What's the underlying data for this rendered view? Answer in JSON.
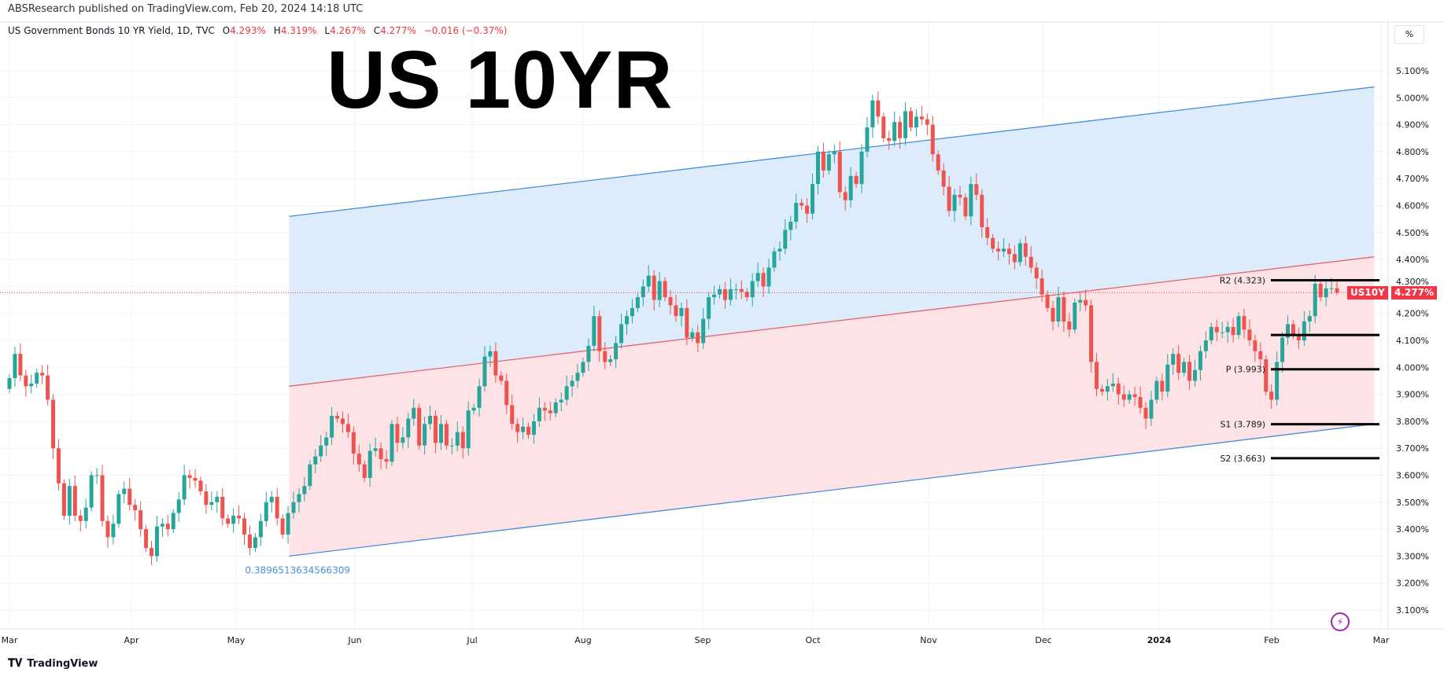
{
  "header": {
    "published": "ABSResearch published on TradingView.com, Feb 20, 2024 14:18 UTC",
    "symbol_desc": "US Government Bonds 10 YR Yield, 1D, TVC",
    "o_label": "O",
    "o": "4.293%",
    "h_label": "H",
    "h": "4.319%",
    "l_label": "L",
    "l": "4.267%",
    "c_label": "C",
    "c": "4.277%",
    "change": "−0.016 (−0.37%)",
    "unit_button": "%"
  },
  "title": "US 10YR",
  "footer": {
    "logo_text": "TradingView"
  },
  "colors": {
    "up": "#26a69a",
    "down": "#ef5350",
    "channel_upper_fill": "#dcecfa",
    "channel_lower_fill": "#fde3e5",
    "channel_line": "#4a8fd6",
    "mid_line": "#e5646f",
    "pivot_line": "#000000",
    "label_blue": "#4a90d9"
  },
  "chart_data": {
    "type": "candlestick",
    "symbol": "US10Y",
    "last_price": "4.277%",
    "last_value": 4.277,
    "y_ticks": [
      "5.100%",
      "5.000%",
      "4.900%",
      "4.800%",
      "4.700%",
      "4.600%",
      "4.500%",
      "4.400%",
      "4.300%",
      "4.200%",
      "4.100%",
      "4.000%",
      "3.900%",
      "3.800%",
      "3.700%",
      "3.600%",
      "3.500%",
      "3.400%",
      "3.300%",
      "3.200%",
      "3.100%"
    ],
    "ylim": [
      3.1,
      5.1
    ],
    "x_ticks": [
      "Mar",
      "Apr",
      "May",
      "Jun",
      "Jul",
      "Aug",
      "Sep",
      "Oct",
      "Nov",
      "Dec",
      "2024",
      "Feb",
      "Mar"
    ],
    "date_range": [
      "2023-03-01",
      "2024-02-20"
    ],
    "first_open": 3.92,
    "last_candle": {
      "open": 4.293,
      "high": 4.319,
      "low": 4.267,
      "close": 4.277
    },
    "closes": [
      3.96,
      4.05,
      3.97,
      3.93,
      3.94,
      3.98,
      3.97,
      3.88,
      3.7,
      3.57,
      3.45,
      3.56,
      3.45,
      3.43,
      3.48,
      3.6,
      3.6,
      3.43,
      3.37,
      3.42,
      3.53,
      3.55,
      3.49,
      3.47,
      3.4,
      3.33,
      3.3,
      3.41,
      3.42,
      3.4,
      3.46,
      3.51,
      3.6,
      3.59,
      3.58,
      3.54,
      3.49,
      3.5,
      3.52,
      3.44,
      3.42,
      3.45,
      3.44,
      3.38,
      3.33,
      3.37,
      3.43,
      3.5,
      3.52,
      3.44,
      3.38,
      3.46,
      3.5,
      3.53,
      3.56,
      3.64,
      3.67,
      3.71,
      3.74,
      3.82,
      3.81,
      3.79,
      3.76,
      3.68,
      3.64,
      3.59,
      3.69,
      3.7,
      3.66,
      3.65,
      3.79,
      3.72,
      3.74,
      3.81,
      3.85,
      3.71,
      3.79,
      3.82,
      3.72,
      3.79,
      3.71,
      3.71,
      3.76,
      3.7,
      3.84,
      3.85,
      3.93,
      4.04,
      4.06,
      3.97,
      3.95,
      3.86,
      3.79,
      3.76,
      3.78,
      3.75,
      3.8,
      3.85,
      3.84,
      3.83,
      3.87,
      3.88,
      3.93,
      3.95,
      3.98,
      4.02,
      4.08,
      4.19,
      4.06,
      4.02,
      4.03,
      4.09,
      4.16,
      4.19,
      4.22,
      4.26,
      4.3,
      4.34,
      4.25,
      4.32,
      4.26,
      4.23,
      4.19,
      4.22,
      4.11,
      4.13,
      4.09,
      4.18,
      4.26,
      4.27,
      4.29,
      4.25,
      4.29,
      4.29,
      4.28,
      4.26,
      4.32,
      4.35,
      4.3,
      4.37,
      4.43,
      4.44,
      4.51,
      4.54,
      4.61,
      4.6,
      4.57,
      4.68,
      4.8,
      4.73,
      4.79,
      4.8,
      4.65,
      4.62,
      4.71,
      4.68,
      4.8,
      4.89,
      4.99,
      4.93,
      4.85,
      4.84,
      4.91,
      4.85,
      4.95,
      4.89,
      4.93,
      4.92,
      4.9,
      4.79,
      4.73,
      4.67,
      4.58,
      4.64,
      4.63,
      4.56,
      4.68,
      4.64,
      4.52,
      4.48,
      4.44,
      4.43,
      4.44,
      4.42,
      4.39,
      4.46,
      4.41,
      4.37,
      4.33,
      4.27,
      4.22,
      4.17,
      4.26,
      4.17,
      4.14,
      4.24,
      4.25,
      4.23,
      4.02,
      3.92,
      3.91,
      3.93,
      3.94,
      3.9,
      3.88,
      3.9,
      3.89,
      3.85,
      3.81,
      3.88,
      3.95,
      3.91,
      4.01,
      4.05,
      3.98,
      4.02,
      3.95,
      3.99,
      4.06,
      4.1,
      4.15,
      4.13,
      4.13,
      4.15,
      4.12,
      4.19,
      4.14,
      4.1,
      4.06,
      4.03,
      3.91,
      3.88,
      4.02,
      4.11,
      4.16,
      4.12,
      4.1,
      4.17,
      4.19,
      4.31,
      4.26,
      4.293,
      4.293,
      4.277
    ],
    "channel": {
      "start_date": "2023-05-15",
      "end_date": "2024-03-01",
      "upper": [
        4.56,
        5.04
      ],
      "middle": [
        3.93,
        4.41
      ],
      "lower": [
        3.3,
        3.79
      ],
      "label": "0.3896513634566309"
    },
    "pivots": [
      {
        "label": "R2 (4.323)",
        "value": 4.323
      },
      {
        "label": "",
        "value": 4.12
      },
      {
        "label": "P (3.993)",
        "value": 3.993
      },
      {
        "label": "S1 (3.789)",
        "value": 3.789
      },
      {
        "label": "S2 (3.663)",
        "value": 3.663
      }
    ]
  }
}
